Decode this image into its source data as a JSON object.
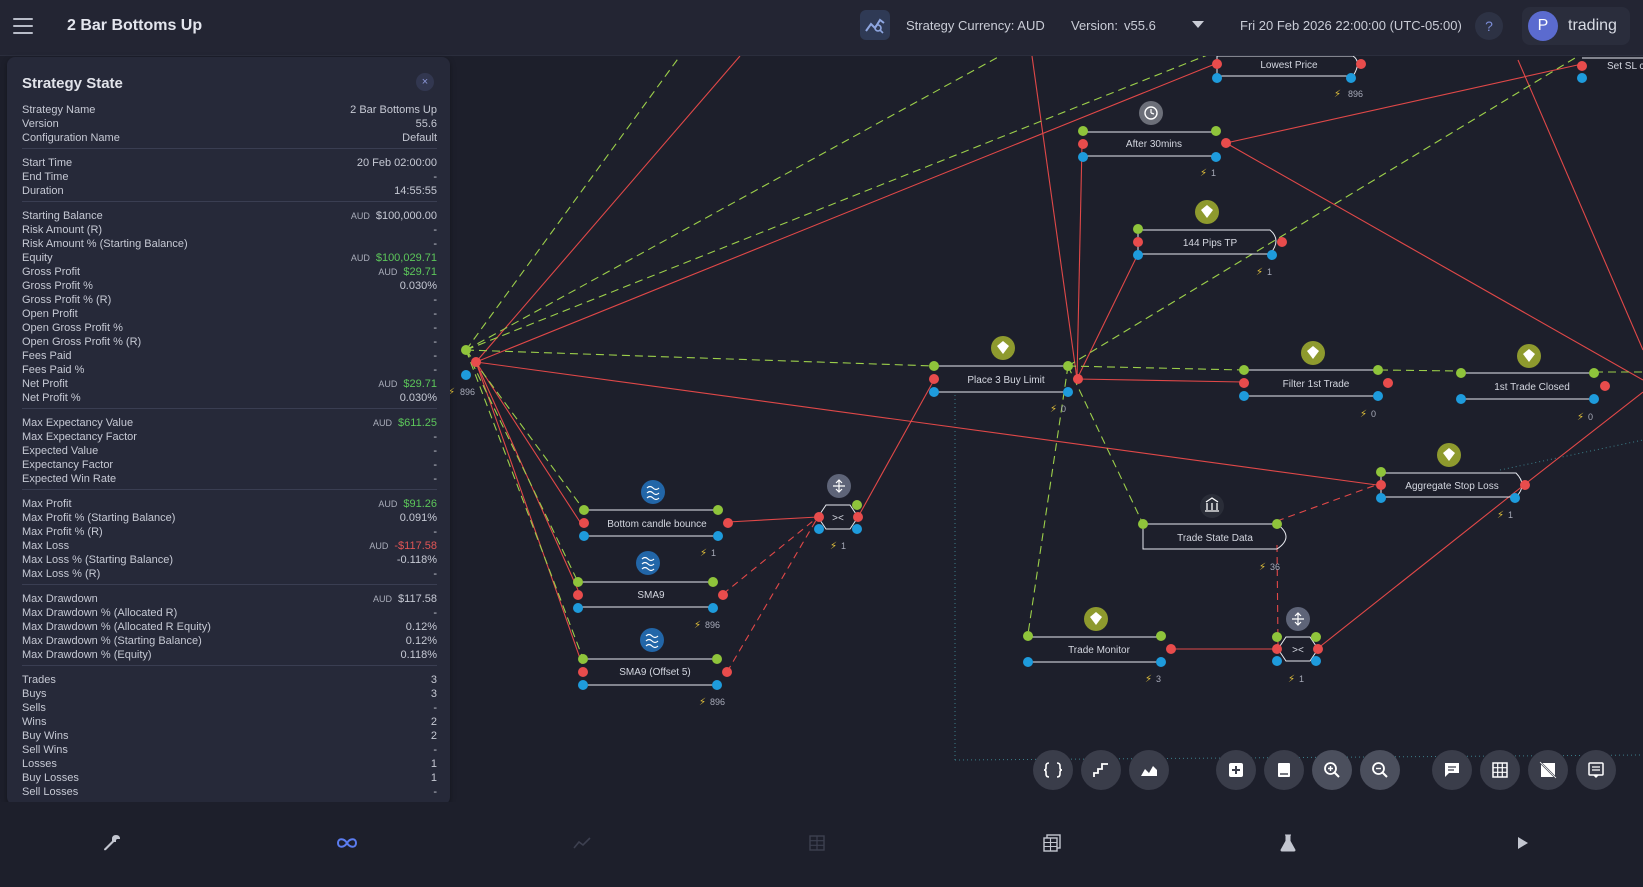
{
  "header": {
    "title": "2 Bar Bottoms Up",
    "currency_label": "Strategy Currency: AUD",
    "version_label": "Version:",
    "version_value": "v55.6",
    "datetime": "Fri 20 Feb 2026 22:00:00 (UTC-05:00)",
    "user_initial": "P",
    "user_name": "trading"
  },
  "panel": {
    "title": "Strategy State",
    "close_icon": "×",
    "groups": [
      [
        {
          "k": "Strategy Name",
          "v": "2 Bar Bottoms Up"
        },
        {
          "k": "Version",
          "v": "55.6"
        },
        {
          "k": "Configuration Name",
          "v": "Default"
        }
      ],
      [
        {
          "k": "Start Time",
          "v": "20 Feb 02:00:00"
        },
        {
          "k": "End Time",
          "v": "-"
        },
        {
          "k": "Duration",
          "v": "14:55:55"
        }
      ],
      [
        {
          "k": "Starting Balance",
          "cur": "AUD",
          "v": "$100,000.00"
        },
        {
          "k": "Risk Amount (R)",
          "v": "-"
        },
        {
          "k": "Risk Amount % (Starting Balance)",
          "v": "-"
        },
        {
          "k": "Equity",
          "cur": "AUD",
          "v": "$100,029.71",
          "cls": "pos"
        },
        {
          "k": "Gross Profit",
          "cur": "AUD",
          "v": "$29.71",
          "cls": "pos"
        },
        {
          "k": "Gross Profit %",
          "v": "0.030%"
        },
        {
          "k": "Gross Profit % (R)",
          "v": "-"
        },
        {
          "k": "Open Profit",
          "v": "-"
        },
        {
          "k": "Open Gross Profit %",
          "v": "-"
        },
        {
          "k": "Open Gross Profit % (R)",
          "v": "-"
        },
        {
          "k": "Fees Paid",
          "v": "-"
        },
        {
          "k": "Fees Paid %",
          "v": "-"
        },
        {
          "k": "Net Profit",
          "cur": "AUD",
          "v": "$29.71",
          "cls": "pos"
        },
        {
          "k": "Net Profit %",
          "v": "0.030%"
        }
      ],
      [
        {
          "k": "Max Expectancy Value",
          "cur": "AUD",
          "v": "$611.25",
          "cls": "pos"
        },
        {
          "k": "Max Expectancy Factor",
          "v": "-"
        },
        {
          "k": "Expected Value",
          "v": "-"
        },
        {
          "k": "Expectancy Factor",
          "v": "-"
        },
        {
          "k": "Expected Win Rate",
          "v": "-"
        }
      ],
      [
        {
          "k": "Max Profit",
          "cur": "AUD",
          "v": "$91.26",
          "cls": "pos"
        },
        {
          "k": "Max Profit % (Starting Balance)",
          "v": "0.091%"
        },
        {
          "k": "Max Profit % (R)",
          "v": "-"
        },
        {
          "k": "Max Loss",
          "cur": "AUD",
          "v": "-$117.58",
          "cls": "neg"
        },
        {
          "k": "Max Loss % (Starting Balance)",
          "v": "-0.118%"
        },
        {
          "k": "Max Loss % (R)",
          "v": "-"
        }
      ],
      [
        {
          "k": "Max Drawdown",
          "cur": "AUD",
          "v": "$117.58"
        },
        {
          "k": "Max Drawdown % (Allocated R)",
          "v": "-"
        },
        {
          "k": "Max Drawdown % (Allocated R Equity)",
          "v": "0.12%"
        },
        {
          "k": "Max Drawdown % (Starting Balance)",
          "v": "0.12%"
        },
        {
          "k": "Max Drawdown % (Equity)",
          "v": "0.118%"
        }
      ],
      [
        {
          "k": "Trades",
          "v": "3"
        },
        {
          "k": "Buys",
          "v": "3"
        },
        {
          "k": "Sells",
          "v": "-"
        },
        {
          "k": "Wins",
          "v": "2"
        },
        {
          "k": "Buy Wins",
          "v": "2"
        },
        {
          "k": "Sell Wins",
          "v": "-"
        },
        {
          "k": "Losses",
          "v": "1"
        },
        {
          "k": "Buy Losses",
          "v": "1"
        },
        {
          "k": "Sell Losses",
          "v": "-"
        }
      ]
    ]
  },
  "graph": {
    "nodes": [
      {
        "label": "Lowest Price",
        "count": "896"
      },
      {
        "label": "Set SL c",
        "count": ""
      },
      {
        "label": "After 30mins",
        "count": "1"
      },
      {
        "label": "144 Pips TP",
        "count": "1"
      },
      {
        "label": "Place 3 Buy Limit",
        "count": "0"
      },
      {
        "label": "Filter 1st Trade",
        "count": "0"
      },
      {
        "label": "1st Trade Closed",
        "count": "0"
      },
      {
        "label": "Aggregate Stop Loss",
        "count": "1"
      },
      {
        "label": "Trade State Data",
        "count": "36"
      },
      {
        "label": "Bottom candle bounce",
        "count": "1"
      },
      {
        "label": "SMA9",
        "count": "896"
      },
      {
        "label": "SMA9 (Offset 5)",
        "count": "896"
      },
      {
        "label": "Trade Monitor",
        "count": "3"
      },
      {
        "label": "><",
        "count": "1"
      },
      {
        "label": "><",
        "count": "1"
      },
      {
        "label": "",
        "count": "896"
      }
    ]
  },
  "colors": {
    "green_port": "#8fc43b",
    "red_port": "#e84c4c",
    "blue_port": "#1e9bdc",
    "red_edge": "#e04848",
    "green_edge": "#9ccf4a",
    "node_badge_green": "#8e9a2e",
    "node_badge_blue": "#2266a8"
  },
  "toolbar_icons": [
    "bracket-icon",
    "chart-steps-icon",
    "area-chart-icon",
    "add-box-icon",
    "book-icon",
    "zoom-in-icon",
    "zoom-out-icon",
    "comment-icon",
    "grid-icon",
    "no-image-icon",
    "notes-icon"
  ],
  "bottom_icons": [
    "wrench-icon",
    "infinity-icon",
    "line-chart-icon",
    "table-icon",
    "data-table-icon",
    "flask-icon",
    "play-icon"
  ]
}
